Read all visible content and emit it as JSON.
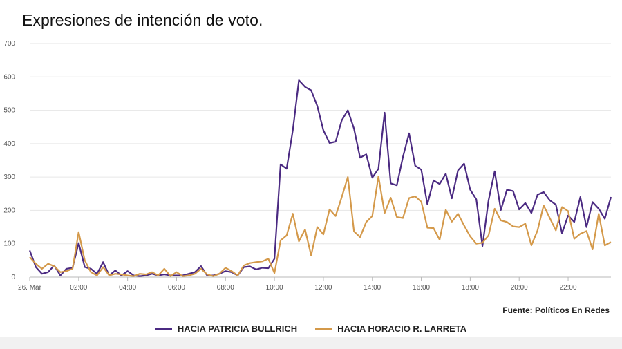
{
  "chart_data": {
    "type": "line",
    "title": "Expresiones de intención de voto.",
    "source": "Fuente: Políticos En Redes",
    "ylim": [
      0,
      700
    ],
    "yticks": [
      "0",
      "100",
      "200",
      "300",
      "400",
      "500",
      "600",
      "700"
    ],
    "xlim": [
      0,
      23.75
    ],
    "xticks": [
      {
        "value": 0,
        "label": "26. Mar"
      },
      {
        "value": 2,
        "label": "02:00"
      },
      {
        "value": 4,
        "label": "04:00"
      },
      {
        "value": 6,
        "label": "06:00"
      },
      {
        "value": 8,
        "label": "08:00"
      },
      {
        "value": 10,
        "label": "10:00"
      },
      {
        "value": 12,
        "label": "12:00"
      },
      {
        "value": 14,
        "label": "14:00"
      },
      {
        "value": 16,
        "label": "16:00"
      },
      {
        "value": 18,
        "label": "18:00"
      },
      {
        "value": 20,
        "label": "20:00"
      },
      {
        "value": 22,
        "label": "22:00"
      }
    ],
    "grid": true,
    "legend_position": "bottom-center",
    "series": [
      {
        "name": "HACIA PATRICIA BULLRICH",
        "color": "#4b2a82",
        "points": [
          [
            0,
            80
          ],
          [
            0.25,
            30
          ],
          [
            0.5,
            10
          ],
          [
            0.75,
            15
          ],
          [
            1,
            35
          ],
          [
            1.25,
            5
          ],
          [
            1.5,
            25
          ],
          [
            1.75,
            28
          ],
          [
            2,
            102
          ],
          [
            2.25,
            30
          ],
          [
            2.5,
            25
          ],
          [
            2.75,
            10
          ],
          [
            3,
            45
          ],
          [
            3.25,
            5
          ],
          [
            3.5,
            20
          ],
          [
            3.75,
            5
          ],
          [
            4,
            18
          ],
          [
            4.25,
            5
          ],
          [
            4.5,
            3
          ],
          [
            4.75,
            5
          ],
          [
            5,
            10
          ],
          [
            5.25,
            5
          ],
          [
            5.5,
            8
          ],
          [
            5.75,
            5
          ],
          [
            6,
            5
          ],
          [
            6.25,
            5
          ],
          [
            6.5,
            10
          ],
          [
            6.75,
            15
          ],
          [
            7,
            33
          ],
          [
            7.25,
            5
          ],
          [
            7.5,
            5
          ],
          [
            7.75,
            10
          ],
          [
            8,
            18
          ],
          [
            8.25,
            15
          ],
          [
            8.5,
            5
          ],
          [
            8.75,
            30
          ],
          [
            9,
            32
          ],
          [
            9.25,
            23
          ],
          [
            9.5,
            28
          ],
          [
            9.75,
            27
          ],
          [
            10,
            55
          ],
          [
            10.25,
            338
          ],
          [
            10.5,
            325
          ],
          [
            10.75,
            440
          ],
          [
            11,
            590
          ],
          [
            11.25,
            570
          ],
          [
            11.5,
            560
          ],
          [
            11.75,
            513
          ],
          [
            12,
            440
          ],
          [
            12.25,
            402
          ],
          [
            12.5,
            406
          ],
          [
            12.75,
            470
          ],
          [
            13,
            500
          ],
          [
            13.25,
            445
          ],
          [
            13.5,
            358
          ],
          [
            13.75,
            368
          ],
          [
            14,
            298
          ],
          [
            14.25,
            325
          ],
          [
            14.5,
            493
          ],
          [
            14.75,
            281
          ],
          [
            15,
            275
          ],
          [
            15.25,
            360
          ],
          [
            15.5,
            431
          ],
          [
            15.75,
            334
          ],
          [
            16,
            322
          ],
          [
            16.25,
            218
          ],
          [
            16.5,
            290
          ],
          [
            16.75,
            279
          ],
          [
            17,
            310
          ],
          [
            17.25,
            236
          ],
          [
            17.5,
            320
          ],
          [
            17.75,
            340
          ],
          [
            18,
            262
          ],
          [
            18.25,
            233
          ],
          [
            18.5,
            93
          ],
          [
            18.75,
            230
          ],
          [
            19,
            317
          ],
          [
            19.25,
            201
          ],
          [
            19.5,
            262
          ],
          [
            19.75,
            258
          ],
          [
            20,
            203
          ],
          [
            20.25,
            222
          ],
          [
            20.5,
            192
          ],
          [
            20.75,
            247
          ],
          [
            21,
            255
          ],
          [
            21.25,
            230
          ],
          [
            21.5,
            217
          ],
          [
            21.75,
            131
          ],
          [
            22,
            185
          ],
          [
            22.25,
            165
          ],
          [
            22.5,
            240
          ],
          [
            22.75,
            150
          ],
          [
            23,
            225
          ],
          [
            23.25,
            205
          ],
          [
            23.5,
            175
          ],
          [
            23.75,
            240
          ]
        ]
      },
      {
        "name": "HACIA HORACIO R. LARRETA",
        "color": "#d4994a",
        "points": [
          [
            0,
            60
          ],
          [
            0.25,
            40
          ],
          [
            0.5,
            25
          ],
          [
            0.75,
            40
          ],
          [
            1,
            33
          ],
          [
            1.25,
            15
          ],
          [
            1.5,
            18
          ],
          [
            1.75,
            25
          ],
          [
            2,
            135
          ],
          [
            2.25,
            50
          ],
          [
            2.5,
            15
          ],
          [
            2.75,
            5
          ],
          [
            3,
            30
          ],
          [
            3.25,
            5
          ],
          [
            3.5,
            10
          ],
          [
            3.75,
            8
          ],
          [
            4,
            5
          ],
          [
            4.25,
            3
          ],
          [
            4.5,
            10
          ],
          [
            4.75,
            8
          ],
          [
            5,
            15
          ],
          [
            5.25,
            5
          ],
          [
            5.5,
            25
          ],
          [
            5.75,
            3
          ],
          [
            6,
            15
          ],
          [
            6.25,
            3
          ],
          [
            6.5,
            5
          ],
          [
            6.75,
            10
          ],
          [
            7,
            25
          ],
          [
            7.25,
            8
          ],
          [
            7.5,
            3
          ],
          [
            7.75,
            10
          ],
          [
            8,
            28
          ],
          [
            8.25,
            18
          ],
          [
            8.5,
            5
          ],
          [
            8.75,
            35
          ],
          [
            9,
            42
          ],
          [
            9.25,
            45
          ],
          [
            9.5,
            47
          ],
          [
            9.75,
            55
          ],
          [
            10,
            12
          ],
          [
            10.25,
            110
          ],
          [
            10.5,
            125
          ],
          [
            10.75,
            190
          ],
          [
            11,
            107
          ],
          [
            11.25,
            143
          ],
          [
            11.5,
            65
          ],
          [
            11.75,
            150
          ],
          [
            12,
            128
          ],
          [
            12.25,
            203
          ],
          [
            12.5,
            183
          ],
          [
            12.75,
            240
          ],
          [
            13,
            300
          ],
          [
            13.25,
            137
          ],
          [
            13.5,
            120
          ],
          [
            13.75,
            165
          ],
          [
            14,
            183
          ],
          [
            14.25,
            302
          ],
          [
            14.5,
            192
          ],
          [
            14.75,
            238
          ],
          [
            15,
            180
          ],
          [
            15.25,
            177
          ],
          [
            15.5,
            237
          ],
          [
            15.75,
            242
          ],
          [
            16,
            226
          ],
          [
            16.25,
            148
          ],
          [
            16.5,
            147
          ],
          [
            16.75,
            112
          ],
          [
            17,
            202
          ],
          [
            17.25,
            166
          ],
          [
            17.5,
            190
          ],
          [
            17.75,
            155
          ],
          [
            18,
            122
          ],
          [
            18.25,
            100
          ],
          [
            18.5,
            103
          ],
          [
            18.75,
            125
          ],
          [
            19,
            205
          ],
          [
            19.25,
            170
          ],
          [
            19.5,
            165
          ],
          [
            19.75,
            152
          ],
          [
            20,
            150
          ],
          [
            20.25,
            160
          ],
          [
            20.5,
            95
          ],
          [
            20.75,
            140
          ],
          [
            21,
            215
          ],
          [
            21.25,
            177
          ],
          [
            21.5,
            140
          ],
          [
            21.75,
            210
          ],
          [
            22,
            198
          ],
          [
            22.25,
            115
          ],
          [
            22.5,
            130
          ],
          [
            22.75,
            138
          ],
          [
            23,
            83
          ],
          [
            23.25,
            190
          ],
          [
            23.5,
            95
          ],
          [
            23.75,
            105
          ]
        ]
      }
    ]
  }
}
